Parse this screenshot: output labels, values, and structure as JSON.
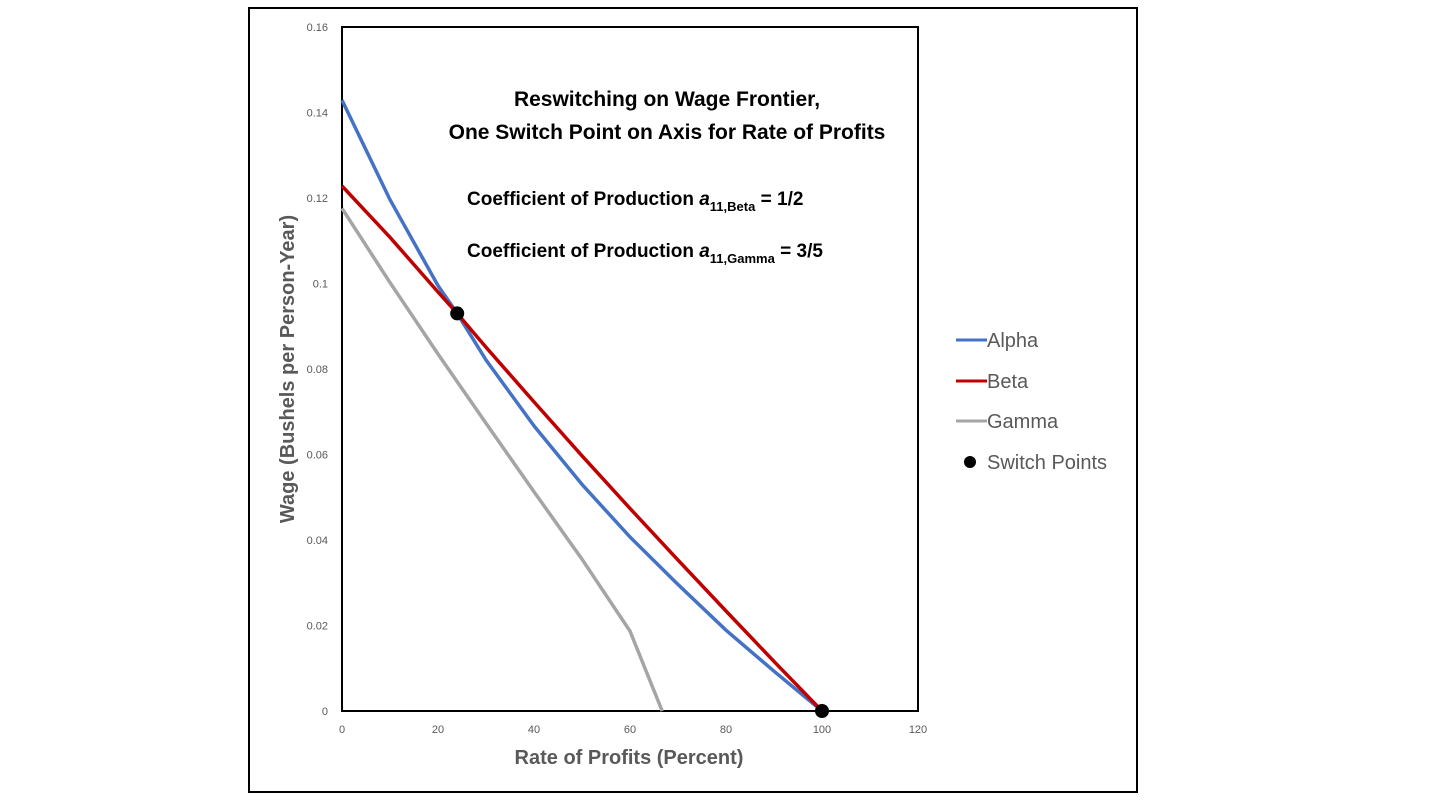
{
  "chart_data": {
    "type": "line",
    "title_lines": [
      "Reswitching on Wage Frontier,",
      "One Switch Point on Axis for Rate of Profits"
    ],
    "xlabel": "Rate of Profits (Percent)",
    "ylabel": "Wage (Bushels per Person-Year)",
    "xlim": [
      0,
      120
    ],
    "ylim": [
      0,
      0.16
    ],
    "x_ticks": [
      "0",
      "20",
      "40",
      "60",
      "80",
      "100",
      "120"
    ],
    "y_ticks": [
      "0",
      "0.02",
      "0.04",
      "0.06",
      "0.08",
      "0.1",
      "0.12",
      "0.14",
      "0.16"
    ],
    "grid": false,
    "legend_position": "right",
    "annotations": {
      "beta": {
        "prefix": "Coefficient of Production ",
        "symbol": "a",
        "subscript": "11,Beta",
        "suffix": " = 1/2"
      },
      "gamma": {
        "prefix": "Coefficient of Production ",
        "symbol": "a",
        "subscript": "11,Gamma",
        "suffix": " = 3/5"
      }
    },
    "series": [
      {
        "name": "Alpha",
        "color": "#4472C4",
        "x": [
          0,
          10,
          20,
          24,
          30,
          40,
          50,
          60,
          70,
          80,
          90,
          100
        ],
        "y": [
          0.1429,
          0.1196,
          0.0995,
          0.093,
          0.0821,
          0.0667,
          0.053,
          0.0407,
          0.0296,
          0.0189,
          0.0093,
          0.0
        ]
      },
      {
        "name": "Beta",
        "color": "#C00000",
        "x": [
          0,
          10,
          20,
          24,
          30,
          40,
          50,
          60,
          70,
          80,
          90,
          100
        ],
        "y": [
          0.1228,
          0.1108,
          0.098,
          0.093,
          0.0851,
          0.0723,
          0.0597,
          0.0474,
          0.0353,
          0.0234,
          0.0116,
          0.0
        ]
      },
      {
        "name": "Gamma",
        "color": "#A5A5A5",
        "x": [
          0,
          10,
          20,
          30,
          40,
          50,
          60,
          66.7
        ],
        "y": [
          0.1176,
          0.1002,
          0.0835,
          0.0673,
          0.0513,
          0.0355,
          0.0187,
          0.0
        ]
      }
    ],
    "switch_points": {
      "name": "Switch Points",
      "color": "#000000",
      "x": [
        24,
        100
      ],
      "y": [
        0.093,
        0.0
      ]
    }
  }
}
